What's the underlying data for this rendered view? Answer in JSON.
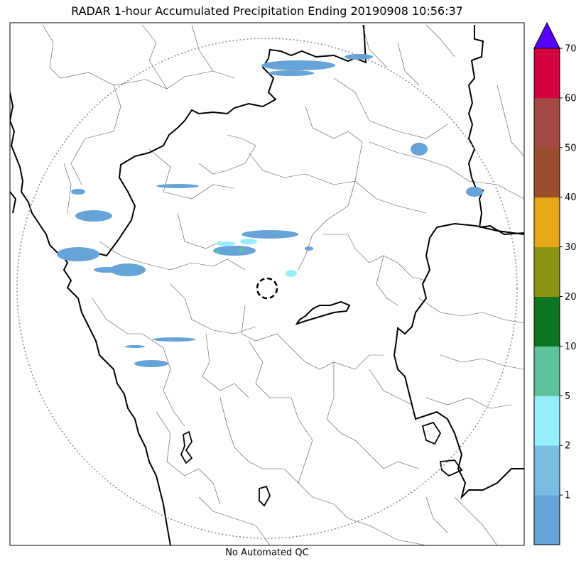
{
  "title": "RADAR 1-hour Accumulated Precipitation Ending 20190908 10:56:37",
  "footer_note": "No Automated QC",
  "colorbar": {
    "bins": [
      {
        "label": "",
        "color": "#66a3d7"
      },
      {
        "label": "1",
        "color": "#7abde3"
      },
      {
        "label": "2",
        "color": "#96eefb"
      },
      {
        "label": "5",
        "color": "#5ec39a"
      },
      {
        "label": "10",
        "color": "#0f7520"
      },
      {
        "label": "20",
        "color": "#8c9414"
      },
      {
        "label": "30",
        "color": "#e6a818"
      },
      {
        "label": "40",
        "color": "#9a4e2b"
      },
      {
        "label": "50",
        "color": "#a44a44"
      },
      {
        "label": "60",
        "color": "#d5003f"
      }
    ],
    "max_label": "70",
    "overflow_color": "#5500ff"
  },
  "colors": {
    "coastline": "#000000",
    "state_border": "#000000",
    "district_border": "#555555",
    "range_ring": "#888888",
    "radar_marker": "#000000"
  }
}
